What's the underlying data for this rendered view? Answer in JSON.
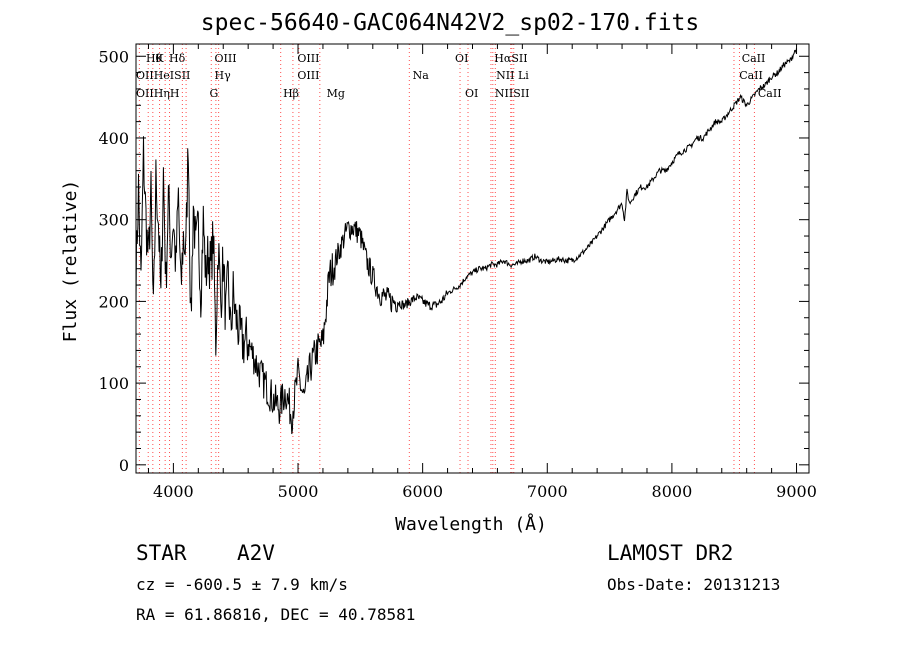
{
  "chart_data": {
    "type": "line",
    "title": "spec-56640-GAC064N42V2_sp02-170.fits",
    "xlabel": "Wavelength (Å)",
    "ylabel": "Flux (relative)",
    "xlim": [
      3700,
      9100
    ],
    "ylim": [
      -10,
      515
    ],
    "x_ticks": [
      4000,
      5000,
      6000,
      7000,
      8000,
      9000
    ],
    "y_ticks": [
      0,
      100,
      200,
      300,
      400,
      500
    ],
    "grid": false,
    "series": [
      {
        "x": [
          3700,
          3720,
          3740,
          3760,
          3780,
          3800,
          3820,
          3840,
          3860,
          3880,
          3900,
          3920,
          3940,
          3960,
          3980,
          4000,
          4020,
          4040,
          4060,
          4080,
          4100,
          4120,
          4140,
          4160,
          4180,
          4200,
          4220,
          4240,
          4260,
          4280,
          4300,
          4320,
          4340,
          4360,
          4380,
          4400,
          4420,
          4440,
          4460,
          4480,
          4500,
          4550,
          4600,
          4650,
          4700,
          4750,
          4800,
          4850,
          4900,
          4950,
          5000,
          5050,
          5100,
          5150,
          5200,
          5250,
          5300,
          5350,
          5400,
          5450,
          5500,
          5550,
          5600,
          5650,
          5700,
          5750,
          5800,
          5850,
          5900,
          5950,
          6000,
          6050,
          6100,
          6150,
          6200,
          6250,
          6300,
          6350,
          6400,
          6450,
          6500,
          6550,
          6600,
          6650,
          6700,
          6750,
          6800,
          6850,
          6900,
          6950,
          7000,
          7050,
          7100,
          7150,
          7200,
          7250,
          7300,
          7350,
          7400,
          7450,
          7500,
          7550,
          7600,
          7620,
          7640,
          7660,
          7700,
          7750,
          7800,
          7850,
          7900,
          7950,
          8000,
          8050,
          8100,
          8150,
          8200,
          8250,
          8300,
          8350,
          8400,
          8450,
          8500,
          8550,
          8600,
          8650,
          8700,
          8750,
          8800,
          8850,
          8900,
          8950,
          9000
        ],
        "values": [
          230,
          340,
          220,
          380,
          300,
          250,
          330,
          180,
          350,
          300,
          200,
          360,
          220,
          330,
          260,
          300,
          240,
          330,
          210,
          280,
          260,
          400,
          170,
          320,
          260,
          290,
          210,
          300,
          230,
          260,
          240,
          280,
          150,
          270,
          200,
          250,
          180,
          230,
          160,
          210,
          180,
          150,
          150,
          130,
          110,
          95,
          80,
          70,
          90,
          60,
          110,
          80,
          120,
          140,
          150,
          230,
          250,
          270,
          290,
          290,
          280,
          250,
          230,
          210,
          205,
          200,
          200,
          195,
          200,
          205,
          200,
          195,
          195,
          200,
          210,
          215,
          220,
          230,
          235,
          240,
          240,
          245,
          245,
          250,
          245,
          245,
          250,
          250,
          255,
          250,
          248,
          250,
          252,
          250,
          250,
          255,
          262,
          270,
          280,
          290,
          300,
          310,
          320,
          300,
          335,
          320,
          330,
          340,
          340,
          350,
          360,
          360,
          370,
          380,
          385,
          390,
          400,
          400,
          410,
          420,
          420,
          430,
          440,
          450,
          440,
          450,
          460,
          465,
          475,
          480,
          490,
          495,
          510
        ]
      }
    ],
    "line_markers": [
      {
        "x": 3727,
        "top": "OII",
        "bottom": "OII"
      },
      {
        "x": 3798,
        "top": "Hθ",
        "bottom": "Hη"
      },
      {
        "x": 3835,
        "top": "Hη",
        "bottom": "Hη"
      },
      {
        "x": 3889,
        "top": "HeI",
        "bottom": ""
      },
      {
        "x": 3934,
        "top": "K",
        "bottom": ""
      },
      {
        "x": 3969,
        "top": "H",
        "bottom": ""
      },
      {
        "x": 4072,
        "top": "SII",
        "bottom": ""
      },
      {
        "x": 4102,
        "top": "Hδ",
        "bottom": ""
      },
      {
        "x": 4304,
        "top": "G",
        "bottom": ""
      },
      {
        "x": 4341,
        "top": "Hγ",
        "bottom": ""
      },
      {
        "x": 4363,
        "top": "OIII",
        "bottom": ""
      },
      {
        "x": 4861,
        "top": "Hβ",
        "bottom": ""
      },
      {
        "x": 4959,
        "top": "OIII",
        "bottom": ""
      },
      {
        "x": 5007,
        "top": "OIII",
        "bottom": ""
      },
      {
        "x": 5175,
        "top": "Mg",
        "bottom": ""
      },
      {
        "x": 5893,
        "top": "Na",
        "bottom": ""
      },
      {
        "x": 6300,
        "top": "OI",
        "bottom": ""
      },
      {
        "x": 6364,
        "top": "OI",
        "bottom": ""
      },
      {
        "x": 6548,
        "top": "NII",
        "bottom": ""
      },
      {
        "x": 6563,
        "top": "Hα",
        "bottom": ""
      },
      {
        "x": 6583,
        "top": "NII",
        "bottom": ""
      },
      {
        "x": 6707,
        "top": "Li",
        "bottom": ""
      },
      {
        "x": 6716,
        "top": "SII",
        "bottom": ""
      },
      {
        "x": 6731,
        "top": "SII",
        "bottom": ""
      },
      {
        "x": 8498,
        "top": "CaII",
        "bottom": ""
      },
      {
        "x": 8542,
        "top": "CaII",
        "bottom": ""
      },
      {
        "x": 8662,
        "top": "CaII",
        "bottom": ""
      }
    ],
    "marker_label_rows": [
      {
        "row": 0,
        "items": [
          {
            "x": 3780,
            "t": "Hθ"
          },
          {
            "x": 3855,
            "t": "K"
          },
          {
            "x": 3965,
            "t": "Hδ"
          },
          {
            "x": 4330,
            "t": "OIII"
          },
          {
            "x": 4995,
            "t": "OIII"
          },
          {
            "x": 6260,
            "t": "OI"
          },
          {
            "x": 6575,
            "t": "HαSII"
          },
          {
            "x": 8560,
            "t": "CaII"
          }
        ]
      },
      {
        "row": 1,
        "items": [
          {
            "x": 3700,
            "t": "OIIHeISII"
          },
          {
            "x": 4330,
            "t": "Hγ"
          },
          {
            "x": 4995,
            "t": "OIII"
          },
          {
            "x": 5920,
            "t": "Na"
          },
          {
            "x": 6590,
            "t": "NII Li"
          },
          {
            "x": 8540,
            "t": "CaII"
          }
        ]
      },
      {
        "row": 2,
        "items": [
          {
            "x": 3700,
            "t": "OIIHηH"
          },
          {
            "x": 4290,
            "t": "G"
          },
          {
            "x": 4880,
            "t": "Hβ"
          },
          {
            "x": 5230,
            "t": "Mg"
          },
          {
            "x": 6340,
            "t": "OI"
          },
          {
            "x": 6580,
            "t": "NIISII"
          },
          {
            "x": 8690,
            "t": "CaII"
          }
        ]
      }
    ],
    "marker_color": "#ff4d4d",
    "curve_color": "#000000"
  },
  "footer": {
    "object_type": "STAR",
    "subclass": "A2V",
    "survey": "LAMOST DR2",
    "redshift": "cz = -600.5 ± 7.9 km/s",
    "obs_date": "Obs-Date: 20131213",
    "coords": "RA =  61.86816, DEC =  40.78581"
  }
}
